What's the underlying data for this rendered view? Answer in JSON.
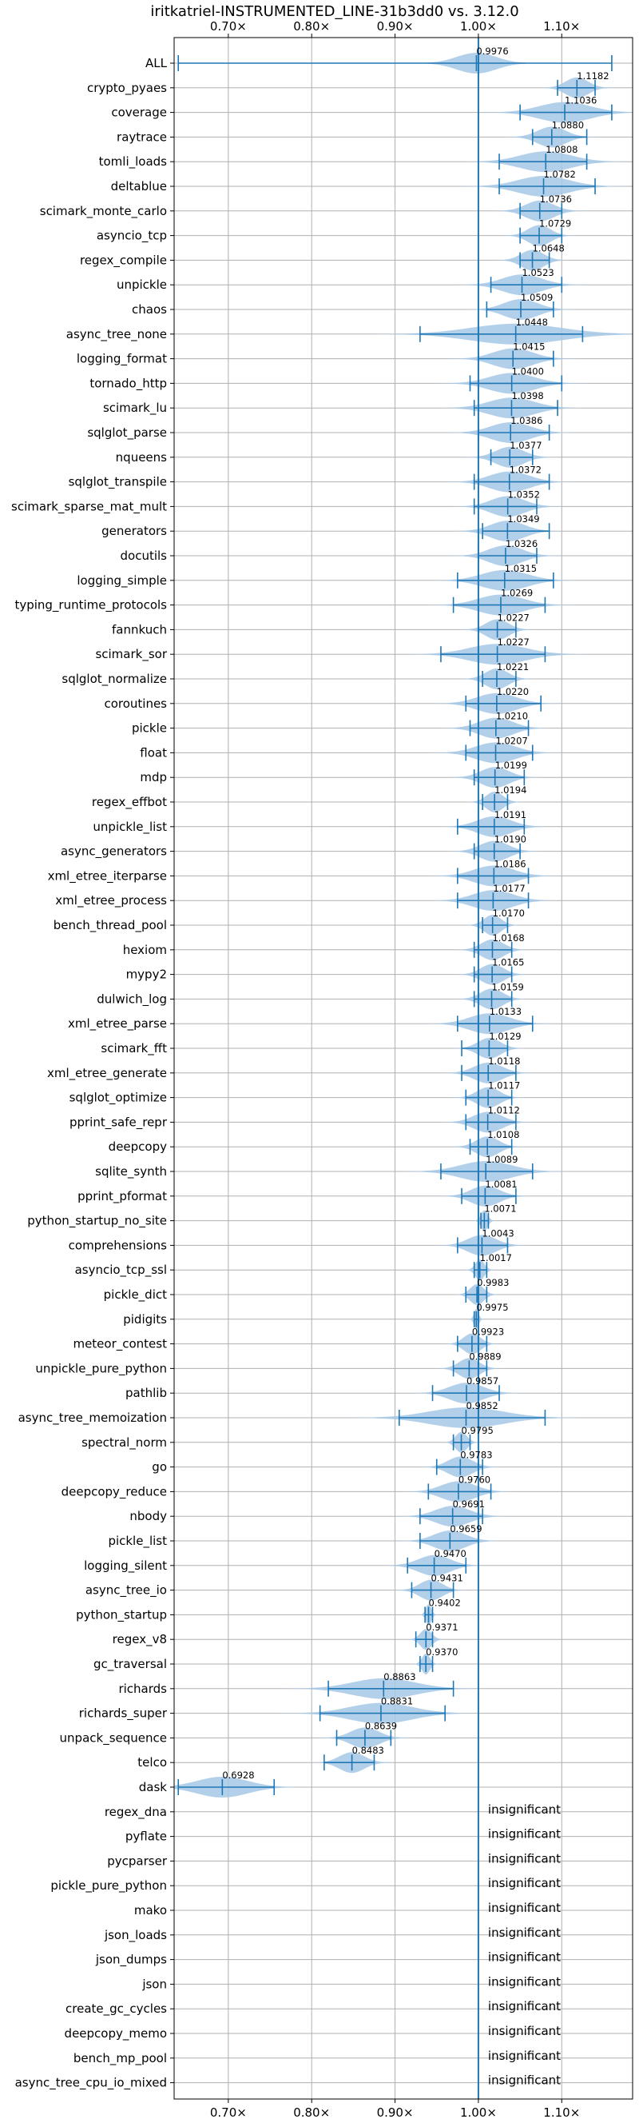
{
  "chart_data": {
    "type": "violin",
    "title": "iritkatriel-INSTRUMENTED_LINE-31b3dd0 vs. 3.12.0",
    "xlim": [
      0.635,
      1.185
    ],
    "xticks": [
      {
        "value": 0.7,
        "label": "0.70×"
      },
      {
        "value": 0.8,
        "label": "0.80×"
      },
      {
        "value": 0.9,
        "label": "0.90×"
      },
      {
        "value": 1.0,
        "label": "1.00×"
      },
      {
        "value": 1.1,
        "label": "1.10×"
      }
    ],
    "reference_line": 1.0,
    "grid": true,
    "colors": {
      "line": "#1f77b4",
      "violin": "#a6c8e6",
      "grid": "#b0b0b0"
    },
    "insignificant_text": "insignificant",
    "benchmarks": [
      {
        "name": "ALL",
        "label": "0.9976",
        "mean": 0.9976,
        "min": 0.64,
        "max": 1.16,
        "spread": 0.035
      },
      {
        "name": "crypto_pyaes",
        "label": "1.1182",
        "mean": 1.1182,
        "min": 1.095,
        "max": 1.14,
        "spread": 0.02
      },
      {
        "name": "coverage",
        "label": "1.1036",
        "mean": 1.1036,
        "min": 1.05,
        "max": 1.16,
        "spread": 0.045
      },
      {
        "name": "raytrace",
        "label": "1.0880",
        "mean": 1.088,
        "min": 1.065,
        "max": 1.13,
        "spread": 0.025
      },
      {
        "name": "tomli_loads",
        "label": "1.0808",
        "mean": 1.0808,
        "min": 1.025,
        "max": 1.13,
        "spread": 0.045
      },
      {
        "name": "deltablue",
        "label": "1.0782",
        "mean": 1.0782,
        "min": 1.025,
        "max": 1.14,
        "spread": 0.045
      },
      {
        "name": "scimark_monte_carlo",
        "label": "1.0736",
        "mean": 1.0736,
        "min": 1.05,
        "max": 1.1,
        "spread": 0.025
      },
      {
        "name": "asyncio_tcp",
        "label": "1.0729",
        "mean": 1.0729,
        "min": 1.05,
        "max": 1.1,
        "spread": 0.02
      },
      {
        "name": "regex_compile",
        "label": "1.0648",
        "mean": 1.0648,
        "min": 1.05,
        "max": 1.085,
        "spread": 0.02
      },
      {
        "name": "unpickle",
        "label": "1.0523",
        "mean": 1.0523,
        "min": 1.015,
        "max": 1.1,
        "spread": 0.035
      },
      {
        "name": "chaos",
        "label": "1.0509",
        "mean": 1.0509,
        "min": 1.01,
        "max": 1.09,
        "spread": 0.03
      },
      {
        "name": "async_tree_none",
        "label": "1.0448",
        "mean": 1.0448,
        "min": 0.93,
        "max": 1.125,
        "spread": 0.08
      },
      {
        "name": "logging_format",
        "label": "1.0415",
        "mean": 1.0415,
        "min": 1.0,
        "max": 1.09,
        "spread": 0.035
      },
      {
        "name": "tornado_http",
        "label": "1.0400",
        "mean": 1.04,
        "min": 0.99,
        "max": 1.1,
        "spread": 0.04
      },
      {
        "name": "scimark_lu",
        "label": "1.0398",
        "mean": 1.0398,
        "min": 0.995,
        "max": 1.095,
        "spread": 0.04
      },
      {
        "name": "sqlglot_parse",
        "label": "1.0386",
        "mean": 1.0386,
        "min": 1.0,
        "max": 1.085,
        "spread": 0.035
      },
      {
        "name": "nqueens",
        "label": "1.0377",
        "mean": 1.0377,
        "min": 1.015,
        "max": 1.065,
        "spread": 0.025
      },
      {
        "name": "sqlglot_transpile",
        "label": "1.0372",
        "mean": 1.0372,
        "min": 0.995,
        "max": 1.085,
        "spread": 0.035
      },
      {
        "name": "scimark_sparse_mat_mult",
        "label": "1.0352",
        "mean": 1.0352,
        "min": 0.995,
        "max": 1.07,
        "spread": 0.03
      },
      {
        "name": "generators",
        "label": "1.0349",
        "mean": 1.0349,
        "min": 1.005,
        "max": 1.085,
        "spread": 0.03
      },
      {
        "name": "docutils",
        "label": "1.0326",
        "mean": 1.0326,
        "min": 1.0,
        "max": 1.07,
        "spread": 0.03
      },
      {
        "name": "logging_simple",
        "label": "1.0315",
        "mean": 1.0315,
        "min": 0.975,
        "max": 1.09,
        "spread": 0.04
      },
      {
        "name": "typing_runtime_protocols",
        "label": "1.0269",
        "mean": 1.0269,
        "min": 0.97,
        "max": 1.08,
        "spread": 0.04
      },
      {
        "name": "fannkuch",
        "label": "1.0227",
        "mean": 1.0227,
        "min": 1.0,
        "max": 1.045,
        "spread": 0.02
      },
      {
        "name": "scimark_sor",
        "label": "1.0227",
        "mean": 1.0227,
        "min": 0.955,
        "max": 1.08,
        "spread": 0.05
      },
      {
        "name": "sqlglot_normalize",
        "label": "1.0221",
        "mean": 1.0221,
        "min": 1.005,
        "max": 1.045,
        "spread": 0.02
      },
      {
        "name": "coroutines",
        "label": "1.0220",
        "mean": 1.022,
        "min": 0.985,
        "max": 1.075,
        "spread": 0.035
      },
      {
        "name": "pickle",
        "label": "1.0210",
        "mean": 1.021,
        "min": 0.99,
        "max": 1.06,
        "spread": 0.03
      },
      {
        "name": "float",
        "label": "1.0207",
        "mean": 1.0207,
        "min": 0.985,
        "max": 1.065,
        "spread": 0.035
      },
      {
        "name": "mdp",
        "label": "1.0199",
        "mean": 1.0199,
        "min": 0.995,
        "max": 1.055,
        "spread": 0.025
      },
      {
        "name": "regex_effbot",
        "label": "1.0194",
        "mean": 1.0194,
        "min": 1.005,
        "max": 1.035,
        "spread": 0.015
      },
      {
        "name": "unpickle_list",
        "label": "1.0191",
        "mean": 1.0191,
        "min": 0.975,
        "max": 1.055,
        "spread": 0.03
      },
      {
        "name": "async_generators",
        "label": "1.0190",
        "mean": 1.019,
        "min": 0.995,
        "max": 1.05,
        "spread": 0.025
      },
      {
        "name": "xml_etree_iterparse",
        "label": "1.0186",
        "mean": 1.0186,
        "min": 0.975,
        "max": 1.06,
        "spread": 0.035
      },
      {
        "name": "xml_etree_process",
        "label": "1.0177",
        "mean": 1.0177,
        "min": 0.975,
        "max": 1.06,
        "spread": 0.035
      },
      {
        "name": "bench_thread_pool",
        "label": "1.0170",
        "mean": 1.017,
        "min": 1.005,
        "max": 1.035,
        "spread": 0.015
      },
      {
        "name": "hexiom",
        "label": "1.0168",
        "mean": 1.0168,
        "min": 0.995,
        "max": 1.04,
        "spread": 0.02
      },
      {
        "name": "mypy2",
        "label": "1.0165",
        "mean": 1.0165,
        "min": 0.995,
        "max": 1.04,
        "spread": 0.02
      },
      {
        "name": "dulwich_log",
        "label": "1.0159",
        "mean": 1.0159,
        "min": 0.995,
        "max": 1.04,
        "spread": 0.02
      },
      {
        "name": "xml_etree_parse",
        "label": "1.0133",
        "mean": 1.0133,
        "min": 0.975,
        "max": 1.065,
        "spread": 0.035
      },
      {
        "name": "scimark_fft",
        "label": "1.0129",
        "mean": 1.0129,
        "min": 0.98,
        "max": 1.035,
        "spread": 0.02
      },
      {
        "name": "xml_etree_generate",
        "label": "1.0118",
        "mean": 1.0118,
        "min": 0.98,
        "max": 1.045,
        "spread": 0.025
      },
      {
        "name": "sqlglot_optimize",
        "label": "1.0117",
        "mean": 1.0117,
        "min": 0.985,
        "max": 1.04,
        "spread": 0.02
      },
      {
        "name": "pprint_safe_repr",
        "label": "1.0112",
        "mean": 1.0112,
        "min": 0.985,
        "max": 1.045,
        "spread": 0.025
      },
      {
        "name": "deepcopy",
        "label": "1.0108",
        "mean": 1.0108,
        "min": 0.99,
        "max": 1.04,
        "spread": 0.02
      },
      {
        "name": "sqlite_synth",
        "label": "1.0089",
        "mean": 1.0089,
        "min": 0.955,
        "max": 1.065,
        "spread": 0.045
      },
      {
        "name": "pprint_pformat",
        "label": "1.0081",
        "mean": 1.0081,
        "min": 0.98,
        "max": 1.045,
        "spread": 0.025
      },
      {
        "name": "python_startup_no_site",
        "label": "1.0071",
        "mean": 1.0071,
        "min": 1.003,
        "max": 1.012,
        "spread": 0.006
      },
      {
        "name": "comprehensions",
        "label": "1.0043",
        "mean": 1.0043,
        "min": 0.975,
        "max": 1.035,
        "spread": 0.025
      },
      {
        "name": "asyncio_tcp_ssl",
        "label": "1.0017",
        "mean": 1.0017,
        "min": 0.995,
        "max": 1.01,
        "spread": 0.008
      },
      {
        "name": "pickle_dict",
        "label": "0.9983",
        "mean": 0.9983,
        "min": 0.985,
        "max": 1.01,
        "spread": 0.012
      },
      {
        "name": "pidigits",
        "label": "0.9975",
        "mean": 0.9975,
        "min": 0.995,
        "max": 1.0,
        "spread": 0.004
      },
      {
        "name": "meteor_contest",
        "label": "0.9923",
        "mean": 0.9923,
        "min": 0.975,
        "max": 1.01,
        "spread": 0.015
      },
      {
        "name": "unpickle_pure_python",
        "label": "0.9889",
        "mean": 0.9889,
        "min": 0.97,
        "max": 1.01,
        "spread": 0.018
      },
      {
        "name": "pathlib",
        "label": "0.9857",
        "mean": 0.9857,
        "min": 0.945,
        "max": 1.025,
        "spread": 0.03
      },
      {
        "name": "async_tree_memoization",
        "label": "0.9852",
        "mean": 0.9852,
        "min": 0.905,
        "max": 1.08,
        "spread": 0.065
      },
      {
        "name": "spectral_norm",
        "label": "0.9795",
        "mean": 0.9795,
        "min": 0.97,
        "max": 0.99,
        "spread": 0.01
      },
      {
        "name": "go",
        "label": "0.9783",
        "mean": 0.9783,
        "min": 0.95,
        "max": 1.005,
        "spread": 0.022
      },
      {
        "name": "deepcopy_reduce",
        "label": "0.9760",
        "mean": 0.976,
        "min": 0.94,
        "max": 1.015,
        "spread": 0.03
      },
      {
        "name": "nbody",
        "label": "0.9691",
        "mean": 0.9691,
        "min": 0.93,
        "max": 1.005,
        "spread": 0.03
      },
      {
        "name": "pickle_list",
        "label": "0.9659",
        "mean": 0.9659,
        "min": 0.93,
        "max": 1.0,
        "spread": 0.028
      },
      {
        "name": "logging_silent",
        "label": "0.9470",
        "mean": 0.947,
        "min": 0.915,
        "max": 0.985,
        "spread": 0.028
      },
      {
        "name": "async_tree_io",
        "label": "0.9431",
        "mean": 0.9431,
        "min": 0.92,
        "max": 0.97,
        "spread": 0.02
      },
      {
        "name": "python_startup",
        "label": "0.9402",
        "mean": 0.9402,
        "min": 0.936,
        "max": 0.945,
        "spread": 0.005
      },
      {
        "name": "regex_v8",
        "label": "0.9371",
        "mean": 0.9371,
        "min": 0.925,
        "max": 0.945,
        "spread": 0.01
      },
      {
        "name": "gc_traversal",
        "label": "0.9370",
        "mean": 0.937,
        "min": 0.93,
        "max": 0.945,
        "spread": 0.007
      },
      {
        "name": "richards",
        "label": "0.8863",
        "mean": 0.8863,
        "min": 0.82,
        "max": 0.97,
        "spread": 0.055
      },
      {
        "name": "richards_super",
        "label": "0.8831",
        "mean": 0.8831,
        "min": 0.81,
        "max": 0.96,
        "spread": 0.055
      },
      {
        "name": "unpack_sequence",
        "label": "0.8639",
        "mean": 0.8639,
        "min": 0.83,
        "max": 0.895,
        "spread": 0.025
      },
      {
        "name": "telco",
        "label": "0.8483",
        "mean": 0.8483,
        "min": 0.815,
        "max": 0.875,
        "spread": 0.022
      },
      {
        "name": "dask",
        "label": "0.6928",
        "mean": 0.6928,
        "min": 0.64,
        "max": 0.755,
        "spread": 0.045
      },
      {
        "name": "regex_dna",
        "label": "insignificant"
      },
      {
        "name": "pyflate",
        "label": "insignificant"
      },
      {
        "name": "pycparser",
        "label": "insignificant"
      },
      {
        "name": "pickle_pure_python",
        "label": "insignificant"
      },
      {
        "name": "mako",
        "label": "insignificant"
      },
      {
        "name": "json_loads",
        "label": "insignificant"
      },
      {
        "name": "json_dumps",
        "label": "insignificant"
      },
      {
        "name": "json",
        "label": "insignificant"
      },
      {
        "name": "create_gc_cycles",
        "label": "insignificant"
      },
      {
        "name": "deepcopy_memo",
        "label": "insignificant"
      },
      {
        "name": "bench_mp_pool",
        "label": "insignificant"
      },
      {
        "name": "async_tree_cpu_io_mixed",
        "label": "insignificant"
      }
    ]
  }
}
